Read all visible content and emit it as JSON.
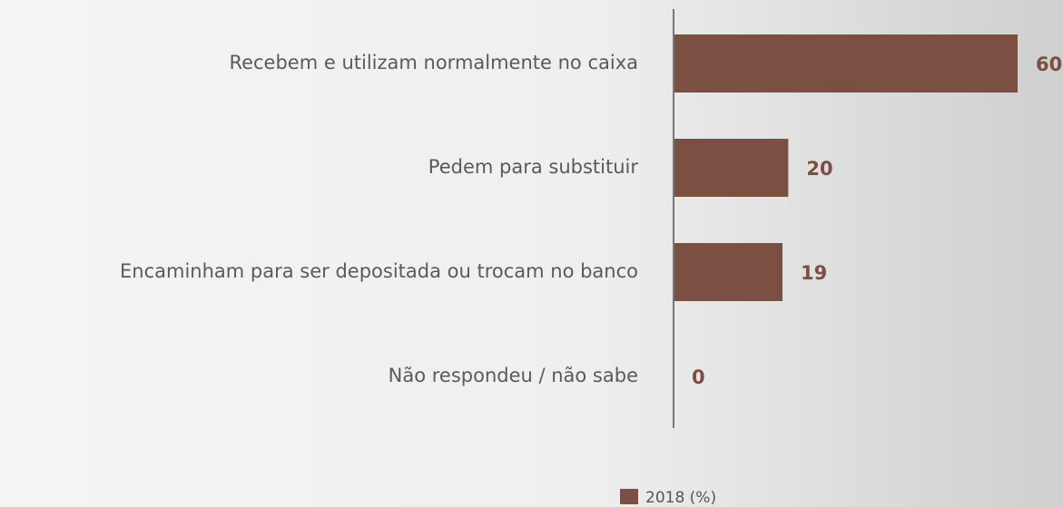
{
  "chart_data": {
    "type": "hbar",
    "categories": [
      "Recebem e utilizam normalmente no caixa",
      "Pedem para substituir",
      "Encaminham para ser depositada ou trocam no banco",
      "Não respondeu / não sabe"
    ],
    "series": [
      {
        "name": "2018 (%)",
        "color": "#7b4f41",
        "values": [
          60,
          20,
          19,
          0
        ]
      }
    ],
    "xlim": [
      0,
      60
    ]
  }
}
